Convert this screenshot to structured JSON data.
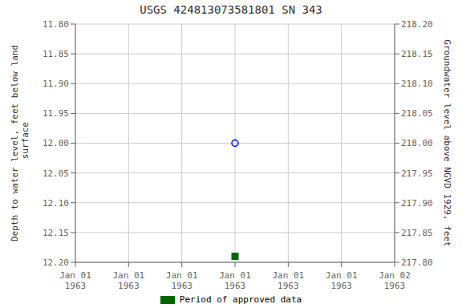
{
  "chart_data": {
    "type": "scatter",
    "title": "USGS 424813073581801 SN 343",
    "categories": [
      "Jan 01\n1963",
      "Jan 01\n1963",
      "Jan 01\n1963",
      "Jan 01\n1963",
      "Jan 01\n1963",
      "Jan 01\n1963",
      "Jan 02\n1963"
    ],
    "ylabel": "Depth to water level, feet below land\n surface",
    "y2label": "Groundwater level above NGVD 1929, feet",
    "ylim": [
      12.2,
      11.8
    ],
    "yticks": [
      {
        "value": 11.8,
        "label": "11.80"
      },
      {
        "value": 11.85,
        "label": "11.85"
      },
      {
        "value": 11.9,
        "label": "11.90"
      },
      {
        "value": 11.95,
        "label": "11.95"
      },
      {
        "value": 12.0,
        "label": "12.00"
      },
      {
        "value": 12.05,
        "label": "12.05"
      },
      {
        "value": 12.1,
        "label": "12.10"
      },
      {
        "value": 12.15,
        "label": "12.15"
      },
      {
        "value": 12.2,
        "label": "12.20"
      }
    ],
    "y2lim": [
      217.8,
      218.2
    ],
    "y2ticks": [
      {
        "value": 218.2,
        "label": "218.20"
      },
      {
        "value": 218.15,
        "label": "218.15"
      },
      {
        "value": 218.1,
        "label": "218.10"
      },
      {
        "value": 218.05,
        "label": "218.05"
      },
      {
        "value": 218.0,
        "label": "218.00"
      },
      {
        "value": 217.95,
        "label": "217.95"
      },
      {
        "value": 217.9,
        "label": "217.90"
      },
      {
        "value": 217.85,
        "label": "217.85"
      },
      {
        "value": 217.8,
        "label": "217.80"
      }
    ],
    "grid": true,
    "legend": "bottom",
    "series": [
      {
        "color": "#0000cc",
        "marker": "open_circle",
        "values": [
          null,
          null,
          null,
          12.0,
          null,
          null,
          null
        ]
      },
      {
        "name": "Period of approved data",
        "color": "#006600",
        "marker": "square",
        "values": [
          null,
          null,
          null,
          12.19,
          null,
          null,
          null
        ]
      }
    ]
  }
}
